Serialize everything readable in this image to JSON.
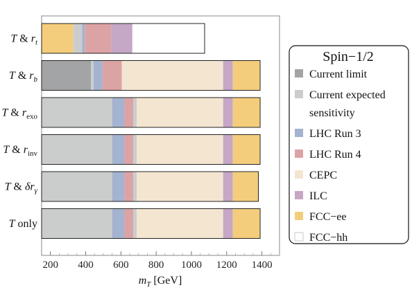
{
  "chart_data": {
    "type": "bar",
    "orientation": "horizontal-stacked-ranges",
    "xlabel_var": "m",
    "xlabel_sub": "T",
    "xlabel_unit": "[GeV]",
    "xlim": [
      150,
      1500
    ],
    "xticks": [
      200,
      400,
      600,
      800,
      1000,
      1200,
      1400
    ],
    "grid": false,
    "legend": {
      "title": "Spin−1/2",
      "placement": "right",
      "entries": [
        {
          "key": "current",
          "label": "Current limit",
          "color": "#a3a4a6"
        },
        {
          "key": "expected",
          "label": "Current expected",
          "label2": "sensitivity",
          "color": "#cbcdcd"
        },
        {
          "key": "run3",
          "label": "LHC Run 3",
          "color": "#a4b3cf"
        },
        {
          "key": "run4",
          "label": "LHC Run 4",
          "color": "#dca3a5"
        },
        {
          "key": "cepc",
          "label": "CEPC",
          "color": "#f4e5d1"
        },
        {
          "key": "ilc",
          "label": "ILC",
          "color": "#c6a7c6"
        },
        {
          "key": "fccee",
          "label": "FCC−ee",
          "color": "#f4cd7c"
        },
        {
          "key": "fcchh",
          "label": "FCC−hh",
          "color": "#ffffff"
        }
      ]
    },
    "rows": [
      {
        "label_base": "T & r",
        "label_sub": "t",
        "label_greek": "",
        "segments": [
          {
            "key": "fccee",
            "from": 150,
            "to": 330
          },
          {
            "key": "expected",
            "from": 330,
            "to": 380
          },
          {
            "key": "run3",
            "from": 380,
            "to": 395
          },
          {
            "key": "run4",
            "from": 395,
            "to": 545
          },
          {
            "key": "ilc",
            "from": 545,
            "to": 665
          },
          {
            "key": "fcchh",
            "from": 665,
            "to": 1075
          }
        ]
      },
      {
        "label_base": "T & r",
        "label_sub": "b",
        "label_greek": "",
        "segments": [
          {
            "key": "current",
            "from": 150,
            "to": 430
          },
          {
            "key": "expected",
            "from": 430,
            "to": 445
          },
          {
            "key": "run3",
            "from": 445,
            "to": 495
          },
          {
            "key": "run4",
            "from": 495,
            "to": 605
          },
          {
            "key": "cepc",
            "from": 605,
            "to": 1180
          },
          {
            "key": "ilc",
            "from": 1180,
            "to": 1235
          },
          {
            "key": "fccee",
            "from": 1235,
            "to": 1390
          }
        ]
      },
      {
        "label_base": "T & r",
        "label_sub": "exo",
        "label_greek": "",
        "segments": [
          {
            "key": "expected",
            "from": 150,
            "to": 550
          },
          {
            "key": "run3",
            "from": 550,
            "to": 620
          },
          {
            "key": "run4",
            "from": 620,
            "to": 670
          },
          {
            "key": "expected",
            "from": 670,
            "to": 690
          },
          {
            "key": "cepc",
            "from": 690,
            "to": 1180
          },
          {
            "key": "ilc",
            "from": 1180,
            "to": 1235
          },
          {
            "key": "fccee",
            "from": 1235,
            "to": 1390
          }
        ]
      },
      {
        "label_base": "T & r",
        "label_sub": "inv",
        "label_greek": "",
        "segments": [
          {
            "key": "expected",
            "from": 150,
            "to": 550
          },
          {
            "key": "run3",
            "from": 550,
            "to": 620
          },
          {
            "key": "run4",
            "from": 620,
            "to": 670
          },
          {
            "key": "expected",
            "from": 670,
            "to": 690
          },
          {
            "key": "cepc",
            "from": 690,
            "to": 1180
          },
          {
            "key": "ilc",
            "from": 1180,
            "to": 1235
          },
          {
            "key": "fccee",
            "from": 1235,
            "to": 1390
          }
        ]
      },
      {
        "label_base": "T & ",
        "label_sub": "γ",
        "label_greek": "δr",
        "segments": [
          {
            "key": "expected",
            "from": 150,
            "to": 550
          },
          {
            "key": "run3",
            "from": 550,
            "to": 620
          },
          {
            "key": "run4",
            "from": 620,
            "to": 670
          },
          {
            "key": "expected",
            "from": 670,
            "to": 690
          },
          {
            "key": "cepc",
            "from": 690,
            "to": 1180
          },
          {
            "key": "ilc",
            "from": 1180,
            "to": 1235
          },
          {
            "key": "fccee",
            "from": 1235,
            "to": 1380
          }
        ]
      },
      {
        "label_base": "T only",
        "label_sub": "",
        "label_greek": "",
        "segments": [
          {
            "key": "expected",
            "from": 150,
            "to": 550
          },
          {
            "key": "run3",
            "from": 550,
            "to": 620
          },
          {
            "key": "run4",
            "from": 620,
            "to": 670
          },
          {
            "key": "expected",
            "from": 670,
            "to": 690
          },
          {
            "key": "cepc",
            "from": 690,
            "to": 1180
          },
          {
            "key": "ilc",
            "from": 1180,
            "to": 1235
          },
          {
            "key": "fccee",
            "from": 1235,
            "to": 1390
          }
        ]
      }
    ]
  }
}
